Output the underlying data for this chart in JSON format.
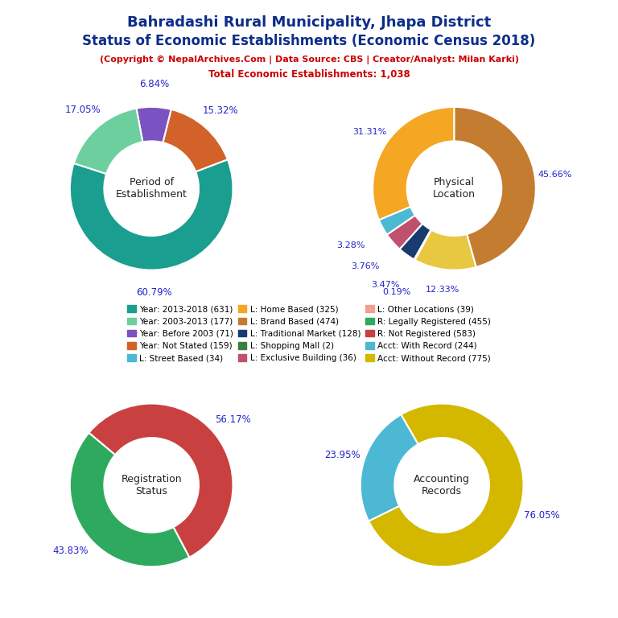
{
  "title_line1": "Bahradashi Rural Municipality, Jhapa District",
  "title_line2": "Status of Economic Establishments (Economic Census 2018)",
  "subtitle1": "(Copyright © NepalArchives.Com | Data Source: CBS | Creator/Analyst: Milan Karki)",
  "subtitle2": "Total Economic Establishments: 1,038",
  "pie1_label": "Period of\nEstablishment",
  "pie1_values": [
    60.79,
    15.32,
    6.84,
    17.05
  ],
  "pie1_colors": [
    "#1a9e8f",
    "#d2622a",
    "#7b52c1",
    "#6ecf9e"
  ],
  "pie1_pct_labels": [
    "60.79%",
    "15.32%",
    "6.84%",
    "17.05%"
  ],
  "pie1_startangle": 162,
  "pie2_label": "Physical\nLocation",
  "pie2_values": [
    31.31,
    3.28,
    3.76,
    3.47,
    0.19,
    12.33,
    45.66
  ],
  "pie2_colors": [
    "#f5a623",
    "#4db8d4",
    "#c0516e",
    "#1a3b6e",
    "#3a7d44",
    "#e8c840",
    "#c47c30"
  ],
  "pie2_pct_labels": [
    "31.31%",
    "3.28%",
    "3.76%",
    "3.47%",
    "0.19%",
    "12.33%",
    "45.66%"
  ],
  "pie2_startangle": 90,
  "pie3_label": "Registration\nStatus",
  "pie3_values": [
    43.83,
    56.17
  ],
  "pie3_colors": [
    "#2eaa5e",
    "#c94040"
  ],
  "pie3_pct_labels": [
    "43.83%",
    "56.17%"
  ],
  "pie3_startangle": 140,
  "pie4_label": "Accounting\nRecords",
  "pie4_values": [
    23.95,
    76.05
  ],
  "pie4_colors": [
    "#4db8d4",
    "#d4b800"
  ],
  "pie4_pct_labels": [
    "23.95%",
    "76.05%"
  ],
  "pie4_startangle": 120,
  "legend_items": [
    {
      "label": "Year: 2013-2018 (631)",
      "color": "#1a9e8f"
    },
    {
      "label": "Year: 2003-2013 (177)",
      "color": "#6ecf9e"
    },
    {
      "label": "Year: Before 2003 (71)",
      "color": "#7b52c1"
    },
    {
      "label": "Year: Not Stated (159)",
      "color": "#d2622a"
    },
    {
      "label": "L: Street Based (34)",
      "color": "#4db8d4"
    },
    {
      "label": "L: Home Based (325)",
      "color": "#f5a623"
    },
    {
      "label": "L: Brand Based (474)",
      "color": "#c47c30"
    },
    {
      "label": "L: Traditional Market (128)",
      "color": "#1a3b6e"
    },
    {
      "label": "L: Shopping Mall (2)",
      "color": "#3a7d44"
    },
    {
      "label": "L: Exclusive Building (36)",
      "color": "#c0516e"
    },
    {
      "label": "L: Other Locations (39)",
      "color": "#f0a090"
    },
    {
      "label": "R: Legally Registered (455)",
      "color": "#2eaa5e"
    },
    {
      "label": "R: Not Registered (583)",
      "color": "#c94040"
    },
    {
      "label": "Acct: With Record (244)",
      "color": "#4db8d4"
    },
    {
      "label": "Acct: Without Record (775)",
      "color": "#d4b800"
    }
  ],
  "title_color": "#0d2d8a",
  "subtitle_color": "#cc0000",
  "pct_color": "#2222cc",
  "center_label_color": "#222222",
  "bg_color": "#ffffff"
}
